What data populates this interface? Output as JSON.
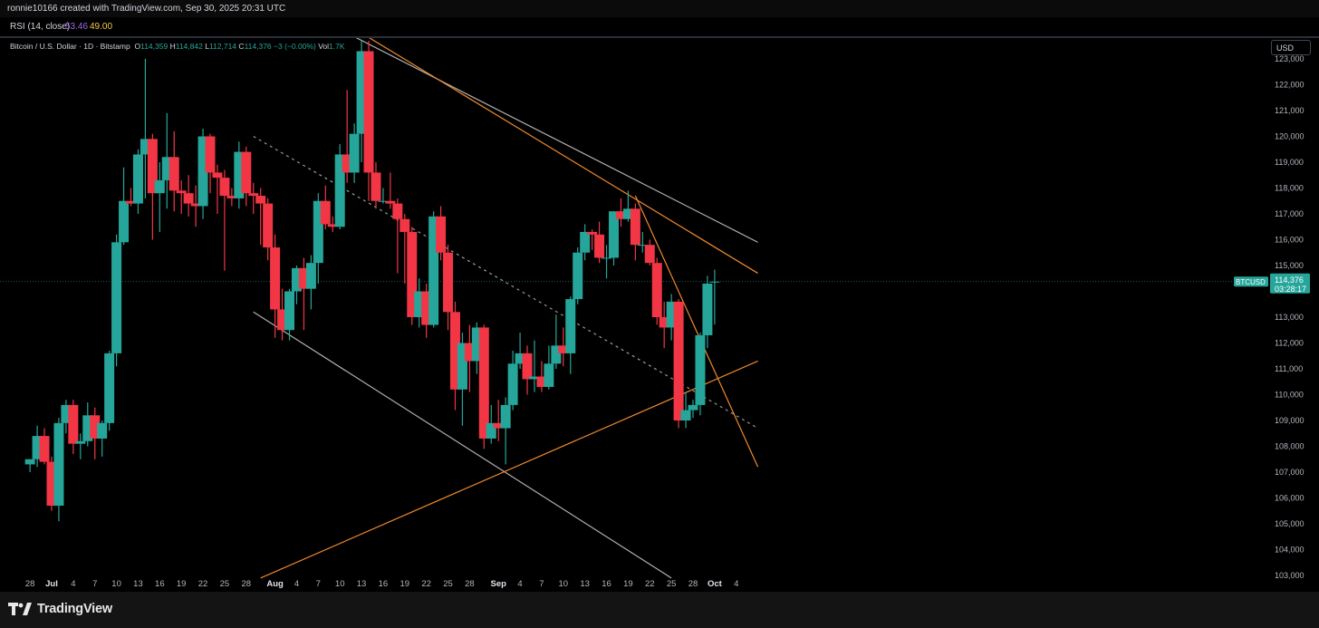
{
  "header": {
    "created_by": "ronnie10166 created with TradingView.com, Sep 30, 2025 20:31 UTC"
  },
  "rsi": {
    "label": "RSI (14, close)",
    "value1": "53.46",
    "value2": "49.00",
    "value1_color": "#9c6ade",
    "value2_color": "#f7c948"
  },
  "legend": {
    "symbol": "Bitcoin / U.S. Dollar · 1D · Bitstamp",
    "o_key": "O",
    "o_val": "114,359",
    "h_key": "H",
    "h_val": "114,842",
    "l_key": "L",
    "l_val": "112,714",
    "c_key": "C",
    "c_val": "114,376",
    "chg": "−3 (−0.00%)",
    "vol_key": "Vol",
    "vol_val": "1.7K"
  },
  "currency_button": "USD",
  "price_tag": {
    "symbol": "BTCUSD",
    "price": "114,376",
    "countdown": "03:28:17",
    "color": "#26a69a"
  },
  "footer": {
    "brand": "TradingView"
  },
  "chart_data": {
    "type": "candlestick",
    "up_color": "#26a69a",
    "down_color": "#f23645",
    "ylim": [
      102600,
      123600
    ],
    "y_ticks": [
      "103,000",
      "104,000",
      "105,000",
      "106,000",
      "107,000",
      "108,000",
      "109,000",
      "110,000",
      "111,000",
      "112,000",
      "113,000",
      "115,000",
      "116,000",
      "117,000",
      "118,000",
      "119,000",
      "120,000",
      "121,000",
      "122,000",
      "123,000"
    ],
    "x_ticks": [
      {
        "label": "28",
        "day": -3
      },
      {
        "label": "Jul",
        "day": 0
      },
      {
        "label": "4",
        "day": 3
      },
      {
        "label": "7",
        "day": 6
      },
      {
        "label": "10",
        "day": 9
      },
      {
        "label": "13",
        "day": 12
      },
      {
        "label": "16",
        "day": 15
      },
      {
        "label": "19",
        "day": 18
      },
      {
        "label": "22",
        "day": 21
      },
      {
        "label": "25",
        "day": 24
      },
      {
        "label": "28",
        "day": 27
      },
      {
        "label": "Aug",
        "day": 31
      },
      {
        "label": "4",
        "day": 34
      },
      {
        "label": "7",
        "day": 37
      },
      {
        "label": "10",
        "day": 40
      },
      {
        "label": "13",
        "day": 43
      },
      {
        "label": "16",
        "day": 46
      },
      {
        "label": "19",
        "day": 49
      },
      {
        "label": "22",
        "day": 52
      },
      {
        "label": "25",
        "day": 55
      },
      {
        "label": "28",
        "day": 58
      },
      {
        "label": "Sep",
        "day": 62
      },
      {
        "label": "4",
        "day": 65
      },
      {
        "label": "7",
        "day": 68
      },
      {
        "label": "10",
        "day": 71
      },
      {
        "label": "13",
        "day": 74
      },
      {
        "label": "16",
        "day": 77
      },
      {
        "label": "19",
        "day": 80
      },
      {
        "label": "22",
        "day": 83
      },
      {
        "label": "25",
        "day": 86
      },
      {
        "label": "28",
        "day": 89
      },
      {
        "label": "Oct",
        "day": 92
      },
      {
        "label": "4",
        "day": 95
      }
    ],
    "candles": [
      {
        "d": -3,
        "o": 107300,
        "h": 107500,
        "l": 107000,
        "c": 107500
      },
      {
        "d": -2,
        "o": 107500,
        "h": 108800,
        "l": 107200,
        "c": 108400
      },
      {
        "d": -1,
        "o": 108400,
        "h": 108700,
        "l": 107300,
        "c": 107400
      },
      {
        "d": 0,
        "o": 107400,
        "h": 107600,
        "l": 105500,
        "c": 105700
      },
      {
        "d": 1,
        "o": 105700,
        "h": 109100,
        "l": 105100,
        "c": 108900
      },
      {
        "d": 2,
        "o": 108900,
        "h": 109800,
        "l": 108500,
        "c": 109600
      },
      {
        "d": 3,
        "o": 109600,
        "h": 109800,
        "l": 107700,
        "c": 108100
      },
      {
        "d": 4,
        "o": 108100,
        "h": 108500,
        "l": 107500,
        "c": 108200
      },
      {
        "d": 5,
        "o": 108200,
        "h": 109700,
        "l": 108000,
        "c": 109200
      },
      {
        "d": 6,
        "o": 109200,
        "h": 109500,
        "l": 107500,
        "c": 108300
      },
      {
        "d": 7,
        "o": 108300,
        "h": 109000,
        "l": 107600,
        "c": 108900
      },
      {
        "d": 8,
        "o": 108900,
        "h": 111700,
        "l": 108600,
        "c": 111600
      },
      {
        "d": 9,
        "o": 111600,
        "h": 116200,
        "l": 111100,
        "c": 115900
      },
      {
        "d": 10,
        "o": 115900,
        "h": 118800,
        "l": 115800,
        "c": 117500
      },
      {
        "d": 11,
        "o": 117500,
        "h": 118000,
        "l": 117300,
        "c": 117400
      },
      {
        "d": 12,
        "o": 117400,
        "h": 119500,
        "l": 117000,
        "c": 119300
      },
      {
        "d": 13,
        "o": 119300,
        "h": 123000,
        "l": 117600,
        "c": 119900
      },
      {
        "d": 14,
        "o": 119900,
        "h": 120100,
        "l": 116000,
        "c": 117800
      },
      {
        "d": 15,
        "o": 117800,
        "h": 119000,
        "l": 116300,
        "c": 118300
      },
      {
        "d": 16,
        "o": 118300,
        "h": 120900,
        "l": 117200,
        "c": 119200
      },
      {
        "d": 17,
        "o": 119200,
        "h": 120200,
        "l": 117100,
        "c": 117900
      },
      {
        "d": 18,
        "o": 117900,
        "h": 118300,
        "l": 117000,
        "c": 117800
      },
      {
        "d": 19,
        "o": 117800,
        "h": 118500,
        "l": 116900,
        "c": 117400
      },
      {
        "d": 20,
        "o": 117400,
        "h": 118100,
        "l": 116500,
        "c": 117300
      },
      {
        "d": 21,
        "o": 117300,
        "h": 120300,
        "l": 116800,
        "c": 120000
      },
      {
        "d": 22,
        "o": 120000,
        "h": 120100,
        "l": 117800,
        "c": 118600
      },
      {
        "d": 23,
        "o": 118600,
        "h": 118900,
        "l": 117000,
        "c": 118400
      },
      {
        "d": 24,
        "o": 118400,
        "h": 118700,
        "l": 114800,
        "c": 117700
      },
      {
        "d": 25,
        "o": 117700,
        "h": 118000,
        "l": 117300,
        "c": 117600
      },
      {
        "d": 26,
        "o": 117600,
        "h": 119800,
        "l": 117200,
        "c": 119400
      },
      {
        "d": 27,
        "o": 119400,
        "h": 119600,
        "l": 117300,
        "c": 117800
      },
      {
        "d": 28,
        "o": 117800,
        "h": 118200,
        "l": 117000,
        "c": 117700
      },
      {
        "d": 29,
        "o": 117700,
        "h": 118000,
        "l": 115800,
        "c": 117400
      },
      {
        "d": 30,
        "o": 117400,
        "h": 117600,
        "l": 115200,
        "c": 115700
      },
      {
        "d": 31,
        "o": 115700,
        "h": 116200,
        "l": 112200,
        "c": 113300
      },
      {
        "d": 32,
        "o": 113300,
        "h": 114100,
        "l": 112100,
        "c": 112500
      },
      {
        "d": 33,
        "o": 112500,
        "h": 114100,
        "l": 112100,
        "c": 114000
      },
      {
        "d": 34,
        "o": 114000,
        "h": 115000,
        "l": 113500,
        "c": 114900
      },
      {
        "d": 35,
        "o": 114900,
        "h": 115300,
        "l": 112500,
        "c": 114100
      },
      {
        "d": 36,
        "o": 114100,
        "h": 115400,
        "l": 113300,
        "c": 115100
      },
      {
        "d": 37,
        "o": 115100,
        "h": 117800,
        "l": 114300,
        "c": 117500
      },
      {
        "d": 38,
        "o": 117500,
        "h": 118100,
        "l": 116400,
        "c": 116600
      },
      {
        "d": 39,
        "o": 116600,
        "h": 116900,
        "l": 116300,
        "c": 116500
      },
      {
        "d": 40,
        "o": 116500,
        "h": 119700,
        "l": 116400,
        "c": 119300
      },
      {
        "d": 41,
        "o": 119300,
        "h": 121800,
        "l": 118200,
        "c": 118600
      },
      {
        "d": 42,
        "o": 118600,
        "h": 120500,
        "l": 118200,
        "c": 120100
      },
      {
        "d": 43,
        "o": 120100,
        "h": 123700,
        "l": 119000,
        "c": 123300
      },
      {
        "d": 44,
        "o": 123300,
        "h": 123700,
        "l": 117500,
        "c": 118600
      },
      {
        "d": 45,
        "o": 118600,
        "h": 119000,
        "l": 117200,
        "c": 117500
      },
      {
        "d": 46,
        "o": 117500,
        "h": 118000,
        "l": 117400,
        "c": 117500
      },
      {
        "d": 47,
        "o": 117500,
        "h": 118600,
        "l": 117200,
        "c": 117400
      },
      {
        "d": 48,
        "o": 117400,
        "h": 117600,
        "l": 114700,
        "c": 116800
      },
      {
        "d": 49,
        "o": 116800,
        "h": 117000,
        "l": 114300,
        "c": 116300
      },
      {
        "d": 50,
        "o": 116300,
        "h": 116500,
        "l": 112700,
        "c": 113000
      },
      {
        "d": 51,
        "o": 113000,
        "h": 114500,
        "l": 112600,
        "c": 114000
      },
      {
        "d": 52,
        "o": 114000,
        "h": 114300,
        "l": 112200,
        "c": 112700
      },
      {
        "d": 53,
        "o": 112700,
        "h": 117100,
        "l": 112600,
        "c": 116900
      },
      {
        "d": 54,
        "o": 116900,
        "h": 117300,
        "l": 115200,
        "c": 115500
      },
      {
        "d": 55,
        "o": 115500,
        "h": 115800,
        "l": 112500,
        "c": 113200
      },
      {
        "d": 56,
        "o": 113200,
        "h": 113600,
        "l": 109400,
        "c": 110200
      },
      {
        "d": 57,
        "o": 110200,
        "h": 112400,
        "l": 108800,
        "c": 112000
      },
      {
        "d": 58,
        "o": 112000,
        "h": 112700,
        "l": 110100,
        "c": 111300
      },
      {
        "d": 59,
        "o": 111300,
        "h": 112800,
        "l": 110800,
        "c": 112600
      },
      {
        "d": 60,
        "o": 112600,
        "h": 112700,
        "l": 107900,
        "c": 108300
      },
      {
        "d": 61,
        "o": 108300,
        "h": 109600,
        "l": 108100,
        "c": 108900
      },
      {
        "d": 62,
        "o": 108900,
        "h": 109800,
        "l": 108200,
        "c": 108700
      },
      {
        "d": 63,
        "o": 108700,
        "h": 109900,
        "l": 107300,
        "c": 109600
      },
      {
        "d": 64,
        "o": 109600,
        "h": 111700,
        "l": 109400,
        "c": 111200
      },
      {
        "d": 65,
        "o": 111200,
        "h": 112400,
        "l": 111000,
        "c": 111600
      },
      {
        "d": 66,
        "o": 111600,
        "h": 111900,
        "l": 110000,
        "c": 110600
      },
      {
        "d": 67,
        "o": 110600,
        "h": 112100,
        "l": 110100,
        "c": 110700
      },
      {
        "d": 68,
        "o": 110700,
        "h": 111300,
        "l": 110100,
        "c": 110300
      },
      {
        "d": 69,
        "o": 110300,
        "h": 111900,
        "l": 110200,
        "c": 111200
      },
      {
        "d": 70,
        "o": 111200,
        "h": 113100,
        "l": 111000,
        "c": 111900
      },
      {
        "d": 71,
        "o": 111900,
        "h": 112600,
        "l": 111100,
        "c": 111600
      },
      {
        "d": 72,
        "o": 111600,
        "h": 113800,
        "l": 110800,
        "c": 113700
      },
      {
        "d": 73,
        "o": 113700,
        "h": 115700,
        "l": 113500,
        "c": 115500
      },
      {
        "d": 74,
        "o": 115500,
        "h": 116600,
        "l": 115200,
        "c": 116300
      },
      {
        "d": 75,
        "o": 116300,
        "h": 116400,
        "l": 115600,
        "c": 116200
      },
      {
        "d": 76,
        "o": 116200,
        "h": 116700,
        "l": 115100,
        "c": 115300
      },
      {
        "d": 77,
        "o": 115300,
        "h": 115800,
        "l": 114500,
        "c": 115300
      },
      {
        "d": 78,
        "o": 115300,
        "h": 117100,
        "l": 115000,
        "c": 117100
      },
      {
        "d": 79,
        "o": 117100,
        "h": 117600,
        "l": 116500,
        "c": 116800
      },
      {
        "d": 80,
        "o": 116800,
        "h": 117900,
        "l": 116700,
        "c": 117200
      },
      {
        "d": 81,
        "o": 117200,
        "h": 117400,
        "l": 115200,
        "c": 115800
      },
      {
        "d": 82,
        "o": 115800,
        "h": 116300,
        "l": 115500,
        "c": 115800
      },
      {
        "d": 83,
        "o": 115800,
        "h": 116000,
        "l": 115000,
        "c": 115100
      },
      {
        "d": 84,
        "o": 115100,
        "h": 115300,
        "l": 112700,
        "c": 113000
      },
      {
        "d": 85,
        "o": 113000,
        "h": 113600,
        "l": 111800,
        "c": 112600
      },
      {
        "d": 86,
        "o": 112600,
        "h": 113900,
        "l": 112100,
        "c": 113600
      },
      {
        "d": 87,
        "o": 113600,
        "h": 113700,
        "l": 108700,
        "c": 109000
      },
      {
        "d": 88,
        "o": 109000,
        "h": 110100,
        "l": 108700,
        "c": 109400
      },
      {
        "d": 89,
        "o": 109400,
        "h": 109800,
        "l": 109100,
        "c": 109600
      },
      {
        "d": 90,
        "o": 109600,
        "h": 112400,
        "l": 109200,
        "c": 112300
      },
      {
        "d": 91,
        "o": 112300,
        "h": 114600,
        "l": 111800,
        "c": 114300
      },
      {
        "d": 92,
        "o": 114359,
        "h": 114842,
        "l": 112714,
        "c": 114376
      }
    ],
    "trendlines": [
      {
        "name": "channel-upper",
        "color": "#b0b0b0",
        "p1": {
          "d": 41,
          "price": 124000
        },
        "p2": {
          "d": 98,
          "price": 115900
        }
      },
      {
        "name": "channel-mid",
        "color": "#9a9a9a",
        "dashed": true,
        "p1": {
          "d": 28,
          "price": 120000
        },
        "p2": {
          "d": 98,
          "price": 108700
        }
      },
      {
        "name": "channel-lower",
        "color": "#b0b0b0",
        "p1": {
          "d": 28,
          "price": 113200
        },
        "p2": {
          "d": 86,
          "price": 102900
        }
      },
      {
        "name": "resistance-orange",
        "color": "#f0892c",
        "p1": {
          "d": 43,
          "price": 124000
        },
        "p2": {
          "d": 98,
          "price": 114700
        }
      },
      {
        "name": "support-orange",
        "color": "#f0892c",
        "p1": {
          "d": 29,
          "price": 102900
        },
        "p2": {
          "d": 98,
          "price": 111300
        }
      },
      {
        "name": "steep-orange",
        "color": "#f0892c",
        "p1": {
          "d": 81,
          "price": 117700
        },
        "p2": {
          "d": 98,
          "price": 107200
        }
      }
    ]
  }
}
